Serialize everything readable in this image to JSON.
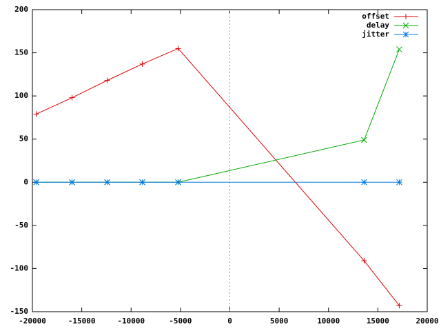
{
  "chart_data": {
    "type": "line",
    "x": [
      -19610,
      -15980,
      -12420,
      -8860,
      -5230,
      13610,
      17170
    ],
    "series": [
      {
        "name": "offset",
        "color": "#dd0000",
        "marker": "plus",
        "values": [
          79,
          98,
          118,
          137,
          155,
          -91,
          -143
        ]
      },
      {
        "name": "delay",
        "color": "#00aa00",
        "marker": "cross",
        "values": [
          0,
          0,
          0,
          0,
          0,
          49,
          154
        ]
      },
      {
        "name": "jitter",
        "color": "#0077dd",
        "marker": "star",
        "values": [
          0,
          0,
          0,
          0,
          0,
          0,
          0
        ]
      }
    ],
    "xlim": [
      -20000,
      20000
    ],
    "xticks": [
      -20000,
      -15000,
      -10000,
      -5000,
      0,
      5000,
      10000,
      15000,
      20000
    ],
    "ylim": [
      -150,
      200
    ],
    "yticks": [
      -150,
      -100,
      -50,
      0,
      50,
      100,
      150,
      200
    ],
    "zero_axis": true,
    "legend": "top-right"
  }
}
